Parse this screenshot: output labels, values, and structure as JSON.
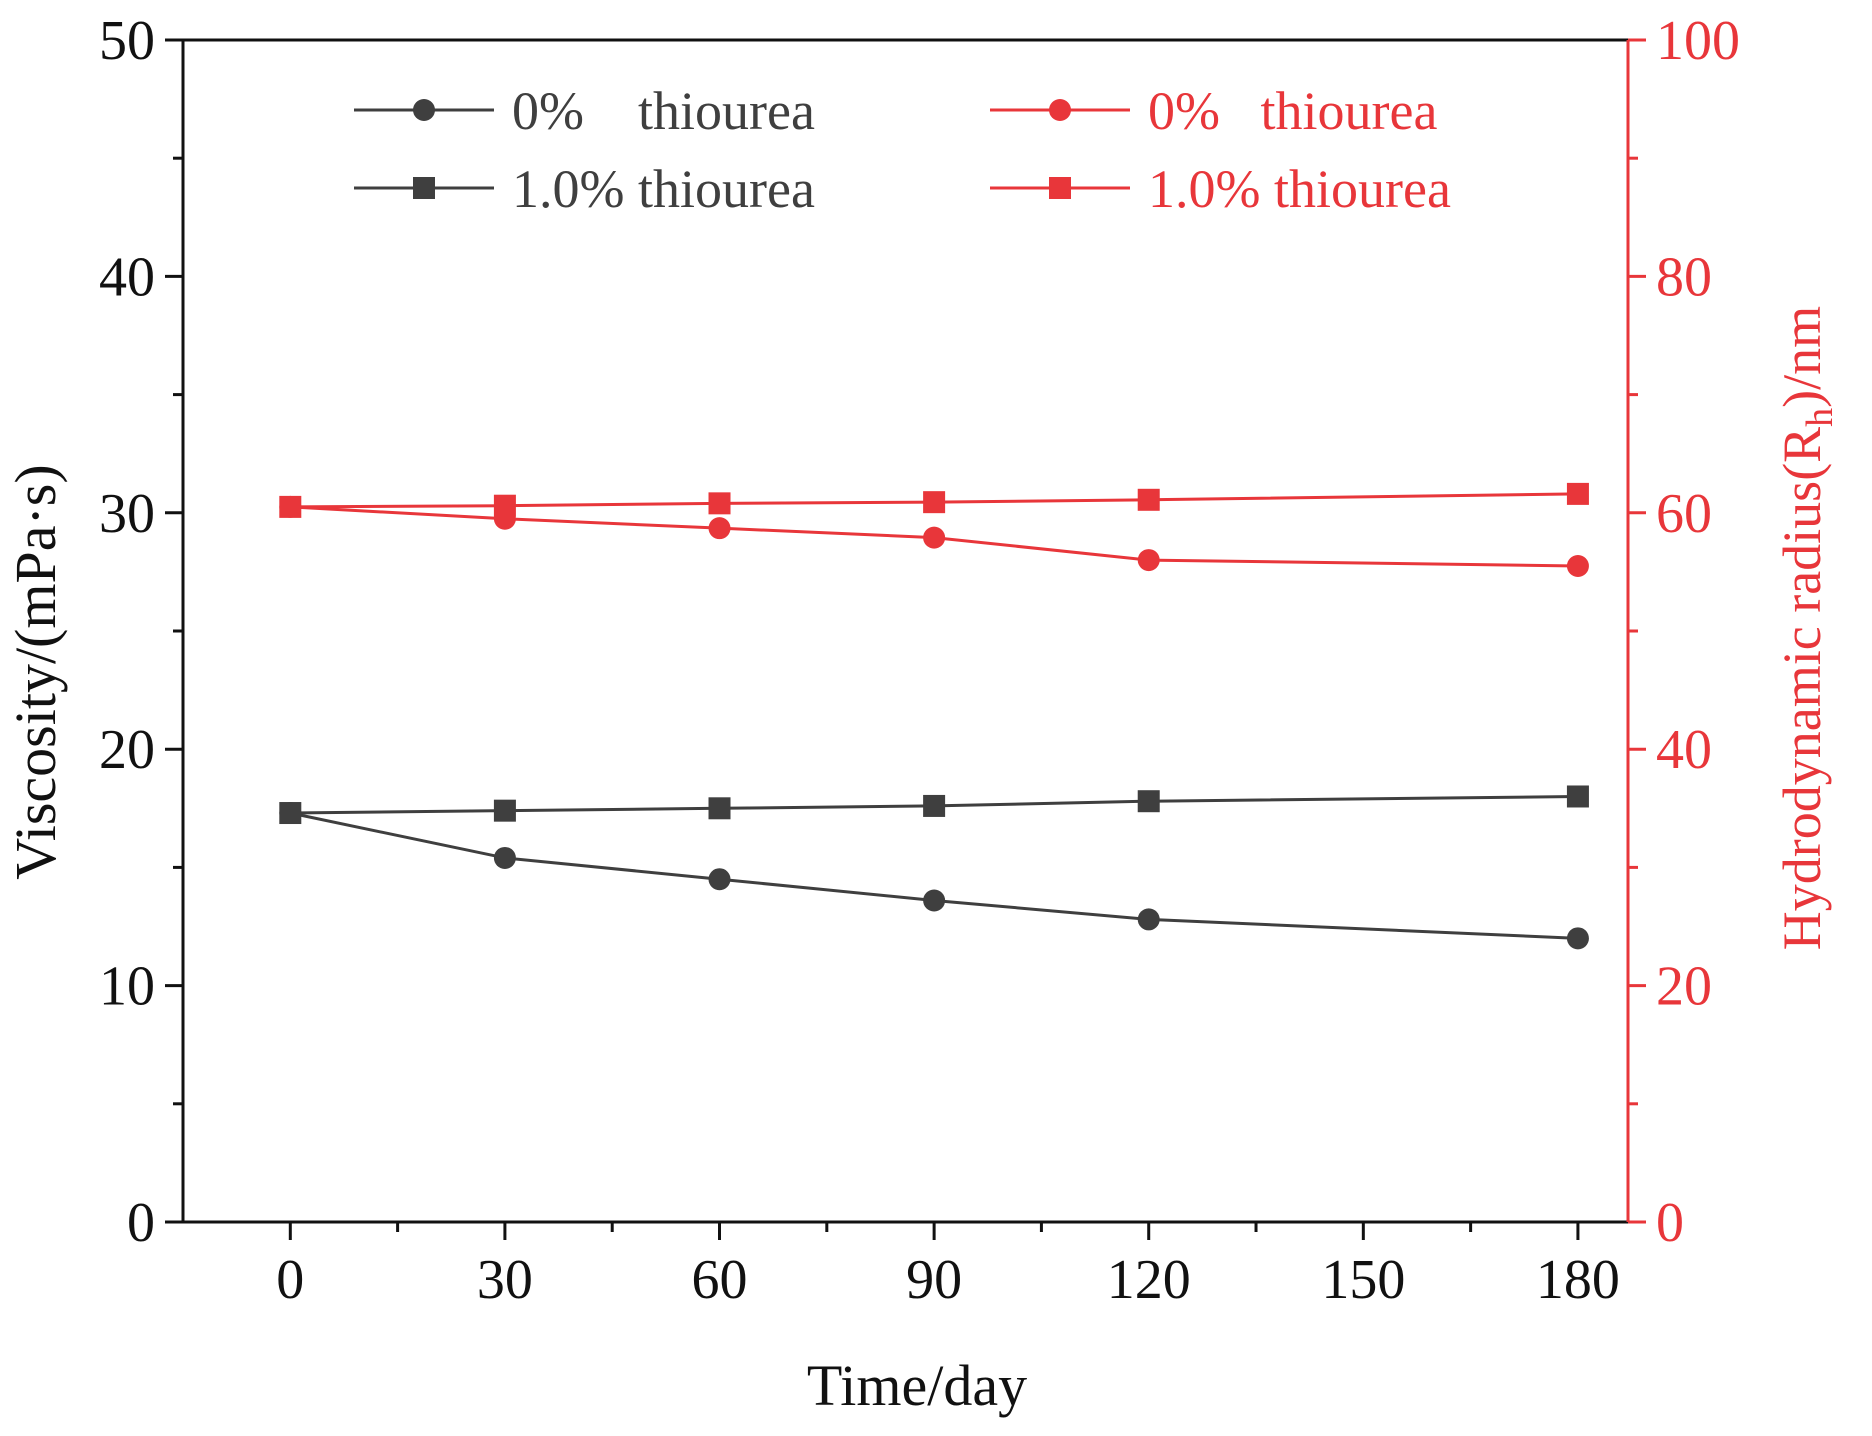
{
  "chart_data": {
    "type": "line",
    "xlabel": "Time/day",
    "ylabel_left": "Viscosity/(mPa·s)",
    "ylabel_right": {
      "prefix": "Hydrodynamic radius(R",
      "subscript": "h",
      "suffix": ")/nm"
    },
    "x_ticks": [
      0,
      30,
      60,
      90,
      120,
      150,
      180
    ],
    "xlim": [
      -15,
      187
    ],
    "y_left": {
      "ylim": [
        0,
        50
      ],
      "ticks": [
        0,
        10,
        20,
        30,
        40,
        50
      ],
      "color": "#111111"
    },
    "y_right": {
      "ylim": [
        0,
        100
      ],
      "ticks": [
        0,
        20,
        40,
        60,
        80,
        100
      ],
      "color": "#e8363a"
    },
    "grid": false,
    "legend_placement": "top",
    "series": [
      {
        "name": "0%    thiourea",
        "axis": "left",
        "marker": "circle",
        "color": "#3f3f3f",
        "x": [
          0,
          30,
          60,
          90,
          120,
          180
        ],
        "y": [
          17.3,
          15.4,
          14.5,
          13.6,
          12.8,
          12.0
        ]
      },
      {
        "name": "1.0% thiourea",
        "axis": "left",
        "marker": "square",
        "color": "#3f3f3f",
        "x": [
          0,
          30,
          60,
          90,
          120,
          180
        ],
        "y": [
          17.3,
          17.4,
          17.5,
          17.6,
          17.8,
          18.0
        ]
      },
      {
        "name": "0%   thiourea",
        "axis": "right",
        "marker": "circle",
        "color": "#e8363a",
        "x": [
          0,
          30,
          60,
          90,
          120,
          180
        ],
        "y": [
          60.5,
          59.5,
          58.7,
          57.9,
          56.0,
          55.5
        ]
      },
      {
        "name": "1.0% thiourea",
        "axis": "right",
        "marker": "square",
        "color": "#e8363a",
        "x": [
          0,
          30,
          60,
          90,
          120,
          180
        ],
        "y": [
          60.5,
          60.6,
          60.8,
          60.9,
          61.1,
          61.6
        ]
      }
    ]
  }
}
